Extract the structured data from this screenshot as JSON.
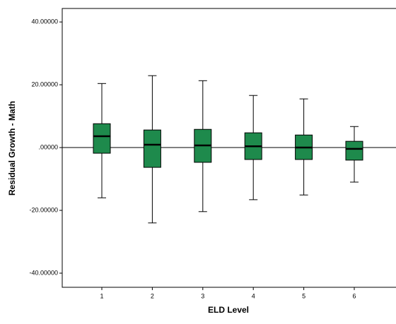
{
  "chart_data": {
    "type": "boxplot",
    "x_label": "ELD Level",
    "y_label": "Residual Growth - Math",
    "categories": [
      "1",
      "2",
      "3",
      "4",
      "5",
      "6"
    ],
    "min": [
      -16.0,
      -24.0,
      -20.4,
      -16.6,
      -15.1,
      -11.0
    ],
    "q1": [
      -1.8,
      -6.3,
      -4.7,
      -3.8,
      -3.8,
      -4.0
    ],
    "median": [
      3.6,
      0.9,
      0.7,
      0.4,
      0.0,
      -0.4
    ],
    "q3": [
      7.6,
      5.6,
      5.8,
      4.7,
      4.0,
      2.0
    ],
    "max": [
      20.4,
      22.9,
      21.3,
      16.6,
      15.5,
      6.7
    ],
    "color": "#1e8a4c",
    "reference_line": 0,
    "ylim": [
      -44.5,
      44.3
    ],
    "yticks": [
      {
        "value": -40,
        "label": "-40.00000"
      },
      {
        "value": -20,
        "label": "-20.00000"
      },
      {
        "value": 0,
        "label": ".00000"
      },
      {
        "value": 20,
        "label": "20.00000"
      },
      {
        "value": 40,
        "label": "40.00000"
      }
    ]
  }
}
